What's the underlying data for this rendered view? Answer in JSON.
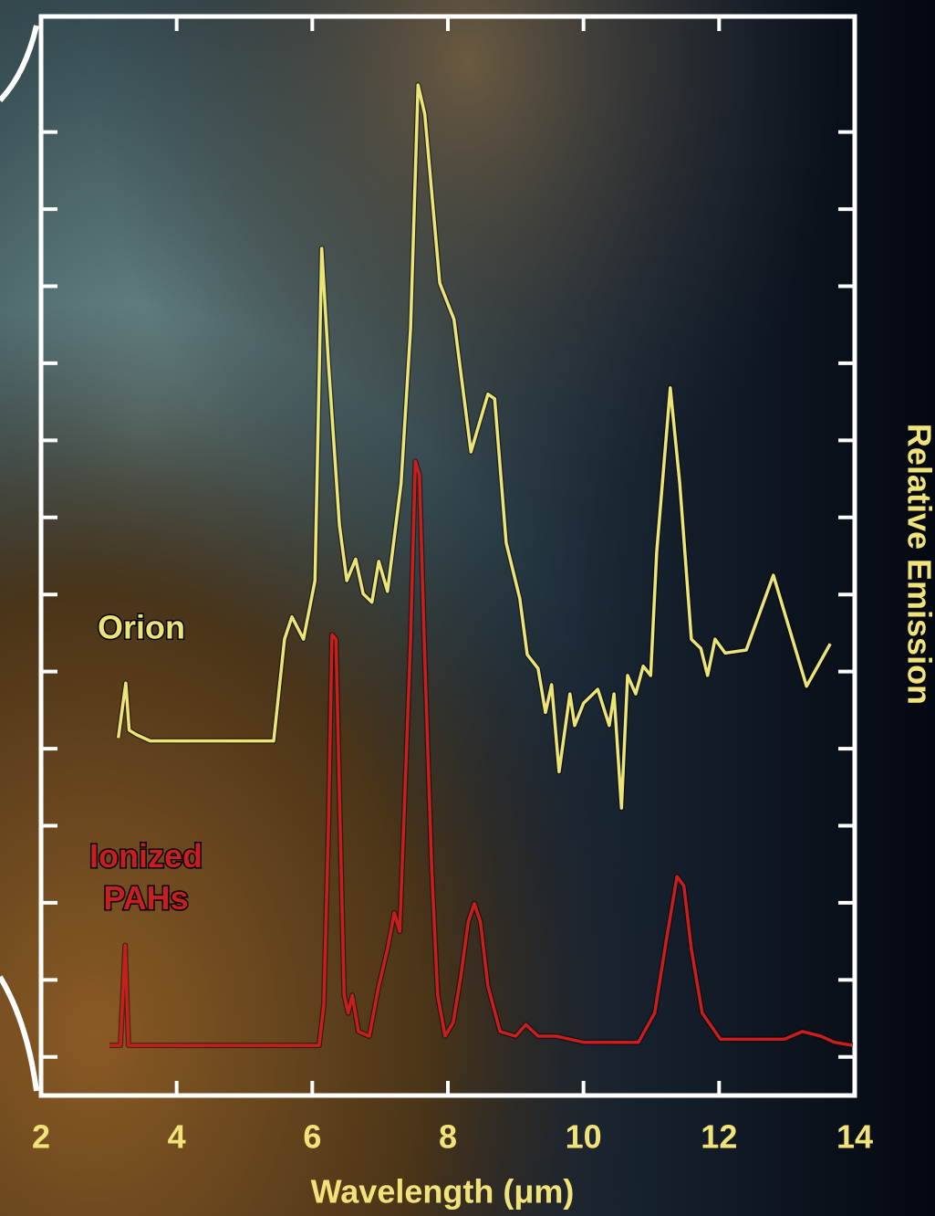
{
  "chart_data": {
    "type": "line",
    "x_label": "Wavelength (μm)",
    "y_label": "Relative Emission",
    "xlim": [
      2,
      14
    ],
    "xticks": [
      2,
      4,
      6,
      8,
      10,
      12,
      14
    ],
    "ylim": [
      0,
      14
    ],
    "yticks": [
      0.5,
      1.5,
      2.5,
      3.5,
      4.5,
      5.5,
      6.5,
      7.5,
      8.5,
      9.5,
      10.5,
      11.5,
      12.5
    ],
    "series": [
      {
        "name": "Orion",
        "color": "#ece477",
        "x": [
          3.14,
          3.25,
          3.3,
          3.41,
          3.61,
          5.43,
          5.59,
          5.7,
          5.87,
          6.04,
          6.14,
          6.24,
          6.4,
          6.51,
          6.64,
          6.75,
          6.88,
          6.98,
          7.11,
          7.31,
          7.45,
          7.56,
          7.66,
          7.88,
          8.09,
          8.34,
          8.59,
          8.69,
          8.86,
          9.06,
          9.17,
          9.33,
          9.44,
          9.53,
          9.64,
          9.8,
          9.87,
          10.0,
          10.21,
          10.38,
          10.45,
          10.56,
          10.65,
          10.77,
          10.88,
          10.99,
          11.08,
          11.28,
          11.42,
          11.59,
          11.73,
          11.83,
          11.94,
          12.09,
          12.4,
          12.8,
          13.29,
          13.64
        ],
        "values": [
          4.64,
          5.35,
          4.74,
          4.68,
          4.6,
          4.6,
          5.92,
          6.21,
          5.92,
          6.68,
          10.99,
          9.48,
          7.4,
          6.68,
          6.96,
          6.51,
          6.4,
          6.93,
          6.54,
          7.94,
          9.95,
          13.11,
          12.73,
          10.54,
          10.07,
          8.35,
          9.1,
          9.04,
          7.17,
          6.45,
          5.72,
          5.54,
          4.97,
          5.33,
          4.2,
          5.21,
          4.8,
          5.09,
          5.27,
          4.8,
          5.21,
          3.73,
          5.45,
          5.21,
          5.57,
          5.45,
          7.05,
          9.18,
          7.94,
          5.92,
          5.8,
          5.45,
          5.92,
          5.74,
          5.78,
          6.75,
          5.31,
          5.86
        ]
      },
      {
        "name": "Ionized\nPAHs",
        "color": "#c81e1e",
        "x": [
          3.01,
          3.17,
          3.24,
          3.29,
          6.1,
          6.17,
          6.24,
          6.29,
          6.35,
          6.41,
          6.47,
          6.53,
          6.59,
          6.68,
          6.84,
          6.98,
          7.11,
          7.21,
          7.29,
          7.35,
          7.45,
          7.52,
          7.58,
          7.65,
          7.76,
          7.85,
          7.96,
          8.08,
          8.19,
          8.3,
          8.39,
          8.48,
          8.59,
          8.77,
          9.0,
          9.15,
          9.33,
          9.6,
          10.0,
          10.81,
          11.05,
          11.22,
          11.38,
          11.48,
          11.59,
          11.75,
          12.02,
          12.96,
          13.23,
          13.5,
          13.7,
          13.97
        ],
        "values": [
          0.65,
          0.65,
          1.95,
          0.65,
          0.65,
          1.18,
          3.55,
          5.98,
          5.92,
          3.55,
          1.3,
          1.07,
          1.3,
          0.83,
          0.77,
          1.42,
          1.9,
          2.37,
          2.13,
          3.55,
          5.92,
          8.23,
          8.05,
          5.92,
          2.96,
          1.3,
          0.77,
          0.95,
          1.54,
          2.25,
          2.49,
          2.25,
          1.42,
          0.83,
          0.77,
          0.92,
          0.77,
          0.77,
          0.69,
          0.69,
          1.07,
          2.01,
          2.84,
          2.72,
          1.9,
          1.07,
          0.73,
          0.73,
          0.83,
          0.77,
          0.69,
          0.65
        ]
      }
    ]
  }
}
